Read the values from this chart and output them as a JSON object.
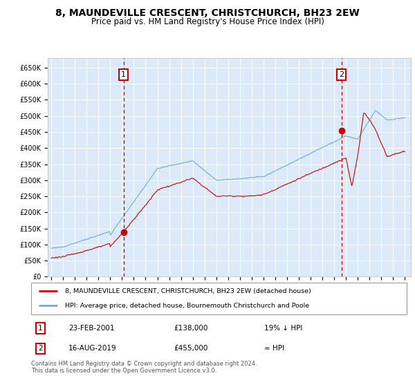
{
  "title": "8, MAUNDEVILLE CRESCENT, CHRISTCHURCH, BH23 2EW",
  "subtitle": "Price paid vs. HM Land Registry's House Price Index (HPI)",
  "title_fontsize": 10,
  "subtitle_fontsize": 8.5,
  "ylim": [
    0,
    680000
  ],
  "yticks": [
    0,
    50000,
    100000,
    150000,
    200000,
    250000,
    300000,
    350000,
    400000,
    450000,
    500000,
    550000,
    600000,
    650000
  ],
  "ytick_labels": [
    "£0",
    "£50K",
    "£100K",
    "£150K",
    "£200K",
    "£250K",
    "£300K",
    "£350K",
    "£400K",
    "£450K",
    "£500K",
    "£550K",
    "£600K",
    "£650K"
  ],
  "xlim_start": 1994.7,
  "xlim_end": 2025.5,
  "xticks": [
    1995,
    1996,
    1997,
    1998,
    1999,
    2000,
    2001,
    2002,
    2003,
    2004,
    2005,
    2006,
    2007,
    2008,
    2009,
    2010,
    2011,
    2012,
    2013,
    2014,
    2015,
    2016,
    2017,
    2018,
    2019,
    2020,
    2021,
    2022,
    2023,
    2024,
    2025
  ],
  "hpi_color": "#6baed6",
  "property_color": "#cc0000",
  "plot_bg": "#dbe9f8",
  "sale1_year": 2001.14,
  "sale1_price": 138000,
  "sale2_year": 2019.62,
  "sale2_price": 455000,
  "legend_line1": "8, MAUNDEVILLE CRESCENT, CHRISTCHURCH, BH23 2EW (detached house)",
  "legend_line2": "HPI: Average price, detached house, Bournemouth Christchurch and Poole",
  "ann1_date": "23-FEB-2001",
  "ann1_price": "£138,000",
  "ann1_rel": "19% ↓ HPI",
  "ann2_date": "16-AUG-2019",
  "ann2_price": "£455,000",
  "ann2_rel": "≈ HPI",
  "footnote": "Contains HM Land Registry data © Crown copyright and database right 2024.\nThis data is licensed under the Open Government Licence v3.0.",
  "footnote_fontsize": 6.0
}
